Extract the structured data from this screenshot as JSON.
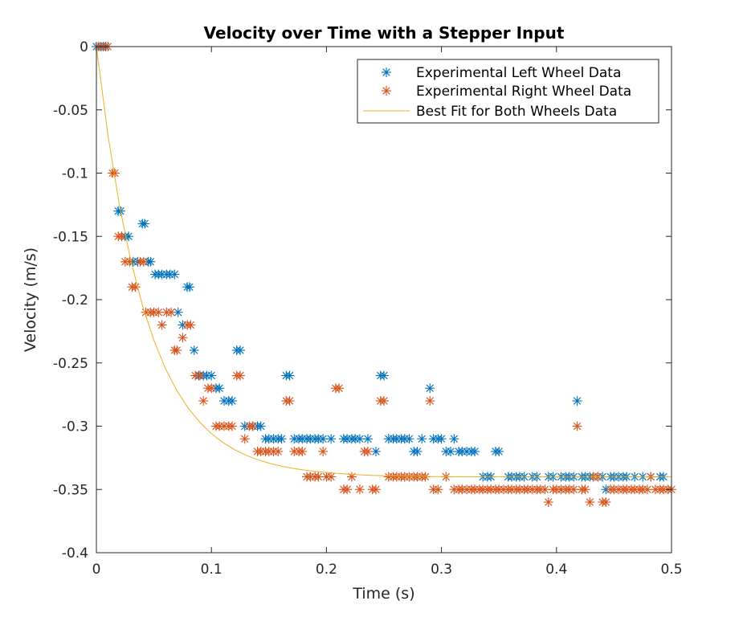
{
  "chart_data": {
    "type": "scatter",
    "title": "Velocity over Time with a Stepper Input",
    "xlabel": "Time (s)",
    "ylabel": "Velocity (m/s)",
    "xlim": [
      0,
      0.5
    ],
    "ylim": [
      -0.4,
      0
    ],
    "xticks": [
      0,
      0.1,
      0.2,
      0.3,
      0.4,
      0.5
    ],
    "xtick_labels": [
      "0",
      "0.1",
      "0.2",
      "0.3",
      "0.4",
      "0.5"
    ],
    "yticks": [
      0,
      -0.05,
      -0.1,
      -0.15,
      -0.2,
      -0.25,
      -0.3,
      -0.35,
      -0.4
    ],
    "ytick_labels": [
      "0",
      "-0.05",
      "-0.1",
      "-0.15",
      "-0.2",
      "-0.25",
      "-0.3",
      "-0.35",
      "-0.4"
    ],
    "grid": false,
    "legend_position": "top-right",
    "series": [
      {
        "name": "Experimental Left Wheel Data",
        "marker": "asterisk",
        "color": "#0072BD",
        "points": [
          [
            0.0,
            0
          ],
          [
            0.004,
            0
          ],
          [
            0.008,
            0
          ],
          [
            0.019,
            -0.13
          ],
          [
            0.021,
            -0.13
          ],
          [
            0.025,
            -0.15
          ],
          [
            0.028,
            -0.15
          ],
          [
            0.032,
            -0.17
          ],
          [
            0.036,
            -0.17
          ],
          [
            0.04,
            -0.14
          ],
          [
            0.042,
            -0.14
          ],
          [
            0.045,
            -0.17
          ],
          [
            0.047,
            -0.17
          ],
          [
            0.051,
            -0.18
          ],
          [
            0.054,
            -0.18
          ],
          [
            0.057,
            -0.18
          ],
          [
            0.061,
            -0.18
          ],
          [
            0.064,
            -0.18
          ],
          [
            0.068,
            -0.18
          ],
          [
            0.071,
            -0.21
          ],
          [
            0.075,
            -0.22
          ],
          [
            0.079,
            -0.19
          ],
          [
            0.081,
            -0.19
          ],
          [
            0.085,
            -0.24
          ],
          [
            0.089,
            -0.26
          ],
          [
            0.093,
            -0.26
          ],
          [
            0.096,
            -0.26
          ],
          [
            0.1,
            -0.26
          ],
          [
            0.104,
            -0.27
          ],
          [
            0.107,
            -0.27
          ],
          [
            0.111,
            -0.28
          ],
          [
            0.115,
            -0.28
          ],
          [
            0.118,
            -0.28
          ],
          [
            0.122,
            -0.24
          ],
          [
            0.125,
            -0.24
          ],
          [
            0.129,
            -0.3
          ],
          [
            0.133,
            -0.3
          ],
          [
            0.136,
            -0.3
          ],
          [
            0.14,
            -0.3
          ],
          [
            0.143,
            -0.3
          ],
          [
            0.147,
            -0.31
          ],
          [
            0.15,
            -0.31
          ],
          [
            0.154,
            -0.31
          ],
          [
            0.158,
            -0.31
          ],
          [
            0.161,
            -0.31
          ],
          [
            0.165,
            -0.26
          ],
          [
            0.168,
            -0.26
          ],
          [
            0.172,
            -0.31
          ],
          [
            0.176,
            -0.31
          ],
          [
            0.179,
            -0.31
          ],
          [
            0.183,
            -0.31
          ],
          [
            0.186,
            -0.31
          ],
          [
            0.19,
            -0.31
          ],
          [
            0.193,
            -0.31
          ],
          [
            0.197,
            -0.31
          ],
          [
            0.204,
            -0.31
          ],
          [
            0.215,
            -0.31
          ],
          [
            0.218,
            -0.31
          ],
          [
            0.222,
            -0.31
          ],
          [
            0.225,
            -0.31
          ],
          [
            0.229,
            -0.31
          ],
          [
            0.236,
            -0.31
          ],
          [
            0.243,
            -0.32
          ],
          [
            0.247,
            -0.26
          ],
          [
            0.25,
            -0.26
          ],
          [
            0.254,
            -0.31
          ],
          [
            0.258,
            -0.31
          ],
          [
            0.261,
            -0.31
          ],
          [
            0.265,
            -0.31
          ],
          [
            0.268,
            -0.31
          ],
          [
            0.272,
            -0.31
          ],
          [
            0.276,
            -0.32
          ],
          [
            0.279,
            -0.32
          ],
          [
            0.283,
            -0.31
          ],
          [
            0.29,
            -0.27
          ],
          [
            0.293,
            -0.31
          ],
          [
            0.297,
            -0.31
          ],
          [
            0.3,
            -0.31
          ],
          [
            0.304,
            -0.32
          ],
          [
            0.308,
            -0.32
          ],
          [
            0.311,
            -0.31
          ],
          [
            0.315,
            -0.32
          ],
          [
            0.318,
            -0.32
          ],
          [
            0.322,
            -0.32
          ],
          [
            0.326,
            -0.32
          ],
          [
            0.329,
            -0.32
          ],
          [
            0.336,
            -0.34
          ],
          [
            0.34,
            -0.34
          ],
          [
            0.343,
            -0.34
          ],
          [
            0.347,
            -0.32
          ],
          [
            0.35,
            -0.32
          ],
          [
            0.358,
            -0.34
          ],
          [
            0.361,
            -0.34
          ],
          [
            0.365,
            -0.34
          ],
          [
            0.368,
            -0.34
          ],
          [
            0.372,
            -0.34
          ],
          [
            0.379,
            -0.34
          ],
          [
            0.383,
            -0.34
          ],
          [
            0.393,
            -0.34
          ],
          [
            0.397,
            -0.34
          ],
          [
            0.404,
            -0.34
          ],
          [
            0.408,
            -0.34
          ],
          [
            0.411,
            -0.34
          ],
          [
            0.415,
            -0.34
          ],
          [
            0.418,
            -0.28
          ],
          [
            0.422,
            -0.34
          ],
          [
            0.425,
            -0.34
          ],
          [
            0.429,
            -0.34
          ],
          [
            0.432,
            -0.34
          ],
          [
            0.436,
            -0.34
          ],
          [
            0.44,
            -0.34
          ],
          [
            0.443,
            -0.35
          ],
          [
            0.447,
            -0.34
          ],
          [
            0.45,
            -0.34
          ],
          [
            0.454,
            -0.34
          ],
          [
            0.458,
            -0.34
          ],
          [
            0.461,
            -0.34
          ],
          [
            0.468,
            -0.34
          ],
          [
            0.475,
            -0.34
          ],
          [
            0.482,
            -0.34
          ],
          [
            0.49,
            -0.34
          ],
          [
            0.493,
            -0.34
          ]
        ]
      },
      {
        "name": "Experimental Right Wheel Data",
        "marker": "asterisk",
        "color": "#D95319",
        "points": [
          [
            0.002,
            0
          ],
          [
            0.006,
            0
          ],
          [
            0.01,
            0
          ],
          [
            0.014,
            -0.1
          ],
          [
            0.016,
            -0.1
          ],
          [
            0.019,
            -0.15
          ],
          [
            0.022,
            -0.15
          ],
          [
            0.025,
            -0.17
          ],
          [
            0.029,
            -0.17
          ],
          [
            0.031,
            -0.19
          ],
          [
            0.034,
            -0.19
          ],
          [
            0.038,
            -0.17
          ],
          [
            0.041,
            -0.17
          ],
          [
            0.043,
            -0.21
          ],
          [
            0.047,
            -0.21
          ],
          [
            0.05,
            -0.21
          ],
          [
            0.054,
            -0.21
          ],
          [
            0.057,
            -0.22
          ],
          [
            0.061,
            -0.21
          ],
          [
            0.065,
            -0.21
          ],
          [
            0.068,
            -0.24
          ],
          [
            0.07,
            -0.24
          ],
          [
            0.075,
            -0.23
          ],
          [
            0.079,
            -0.22
          ],
          [
            0.082,
            -0.22
          ],
          [
            0.086,
            -0.26
          ],
          [
            0.09,
            -0.26
          ],
          [
            0.093,
            -0.28
          ],
          [
            0.097,
            -0.27
          ],
          [
            0.1,
            -0.27
          ],
          [
            0.104,
            -0.3
          ],
          [
            0.107,
            -0.3
          ],
          [
            0.111,
            -0.3
          ],
          [
            0.115,
            -0.3
          ],
          [
            0.118,
            -0.3
          ],
          [
            0.122,
            -0.26
          ],
          [
            0.125,
            -0.26
          ],
          [
            0.129,
            -0.31
          ],
          [
            0.133,
            -0.3
          ],
          [
            0.136,
            -0.3
          ],
          [
            0.14,
            -0.32
          ],
          [
            0.143,
            -0.32
          ],
          [
            0.147,
            -0.32
          ],
          [
            0.15,
            -0.32
          ],
          [
            0.154,
            -0.32
          ],
          [
            0.158,
            -0.32
          ],
          [
            0.165,
            -0.28
          ],
          [
            0.168,
            -0.28
          ],
          [
            0.172,
            -0.32
          ],
          [
            0.176,
            -0.32
          ],
          [
            0.179,
            -0.32
          ],
          [
            0.183,
            -0.34
          ],
          [
            0.186,
            -0.34
          ],
          [
            0.19,
            -0.34
          ],
          [
            0.193,
            -0.34
          ],
          [
            0.197,
            -0.32
          ],
          [
            0.2,
            -0.34
          ],
          [
            0.204,
            -0.34
          ],
          [
            0.208,
            -0.27
          ],
          [
            0.211,
            -0.27
          ],
          [
            0.215,
            -0.35
          ],
          [
            0.218,
            -0.35
          ],
          [
            0.222,
            -0.34
          ],
          [
            0.229,
            -0.35
          ],
          [
            0.233,
            -0.32
          ],
          [
            0.236,
            -0.32
          ],
          [
            0.24,
            -0.35
          ],
          [
            0.243,
            -0.35
          ],
          [
            0.247,
            -0.28
          ],
          [
            0.25,
            -0.28
          ],
          [
            0.254,
            -0.34
          ],
          [
            0.258,
            -0.34
          ],
          [
            0.261,
            -0.34
          ],
          [
            0.265,
            -0.34
          ],
          [
            0.268,
            -0.34
          ],
          [
            0.272,
            -0.34
          ],
          [
            0.276,
            -0.34
          ],
          [
            0.279,
            -0.34
          ],
          [
            0.283,
            -0.34
          ],
          [
            0.286,
            -0.34
          ],
          [
            0.29,
            -0.28
          ],
          [
            0.293,
            -0.35
          ],
          [
            0.297,
            -0.35
          ],
          [
            0.304,
            -0.34
          ],
          [
            0.311,
            -0.35
          ],
          [
            0.315,
            -0.35
          ],
          [
            0.318,
            -0.35
          ],
          [
            0.322,
            -0.35
          ],
          [
            0.326,
            -0.35
          ],
          [
            0.329,
            -0.35
          ],
          [
            0.333,
            -0.35
          ],
          [
            0.336,
            -0.35
          ],
          [
            0.34,
            -0.35
          ],
          [
            0.343,
            -0.35
          ],
          [
            0.347,
            -0.35
          ],
          [
            0.35,
            -0.35
          ],
          [
            0.354,
            -0.35
          ],
          [
            0.358,
            -0.35
          ],
          [
            0.361,
            -0.35
          ],
          [
            0.365,
            -0.35
          ],
          [
            0.368,
            -0.35
          ],
          [
            0.372,
            -0.35
          ],
          [
            0.375,
            -0.35
          ],
          [
            0.379,
            -0.35
          ],
          [
            0.383,
            -0.35
          ],
          [
            0.386,
            -0.35
          ],
          [
            0.39,
            -0.35
          ],
          [
            0.393,
            -0.36
          ],
          [
            0.397,
            -0.35
          ],
          [
            0.4,
            -0.35
          ],
          [
            0.404,
            -0.35
          ],
          [
            0.408,
            -0.35
          ],
          [
            0.411,
            -0.35
          ],
          [
            0.415,
            -0.35
          ],
          [
            0.418,
            -0.3
          ],
          [
            0.422,
            -0.35
          ],
          [
            0.425,
            -0.35
          ],
          [
            0.429,
            -0.36
          ],
          [
            0.432,
            -0.34
          ],
          [
            0.436,
            -0.34
          ],
          [
            0.44,
            -0.36
          ],
          [
            0.443,
            -0.36
          ],
          [
            0.447,
            -0.35
          ],
          [
            0.45,
            -0.35
          ],
          [
            0.454,
            -0.35
          ],
          [
            0.458,
            -0.35
          ],
          [
            0.461,
            -0.35
          ],
          [
            0.465,
            -0.35
          ],
          [
            0.468,
            -0.35
          ],
          [
            0.472,
            -0.35
          ],
          [
            0.475,
            -0.35
          ],
          [
            0.479,
            -0.35
          ],
          [
            0.482,
            -0.34
          ],
          [
            0.486,
            -0.35
          ],
          [
            0.49,
            -0.35
          ],
          [
            0.493,
            -0.35
          ],
          [
            0.497,
            -0.35
          ],
          [
            0.5,
            -0.35
          ]
        ]
      },
      {
        "name": "Best Fit for Both Wheels Data",
        "marker": "line",
        "color": "#EDB120",
        "points": [
          [
            0.0,
            0
          ],
          [
            0.01,
            -0.0698
          ],
          [
            0.02,
            -0.1253
          ],
          [
            0.03,
            -0.1693
          ],
          [
            0.04,
            -0.2044
          ],
          [
            0.05,
            -0.2322
          ],
          [
            0.06,
            -0.2544
          ],
          [
            0.07,
            -0.272
          ],
          [
            0.08,
            -0.2859
          ],
          [
            0.09,
            -0.297
          ],
          [
            0.1,
            -0.3059
          ],
          [
            0.11,
            -0.3129
          ],
          [
            0.12,
            -0.3185
          ],
          [
            0.13,
            -0.3229
          ],
          [
            0.14,
            -0.3264
          ],
          [
            0.15,
            -0.3292
          ],
          [
            0.16,
            -0.3314
          ],
          [
            0.17,
            -0.3332
          ],
          [
            0.18,
            -0.3346
          ],
          [
            0.19,
            -0.3357
          ],
          [
            0.2,
            -0.3366
          ],
          [
            0.22,
            -0.338
          ],
          [
            0.24,
            -0.3389
          ],
          [
            0.26,
            -0.3394
          ],
          [
            0.28,
            -0.3397
          ],
          [
            0.3,
            -0.3399
          ],
          [
            0.35,
            -0.3401
          ],
          [
            0.4,
            -0.3401
          ],
          [
            0.45,
            -0.3401
          ],
          [
            0.5,
            -0.3401
          ]
        ]
      }
    ]
  }
}
